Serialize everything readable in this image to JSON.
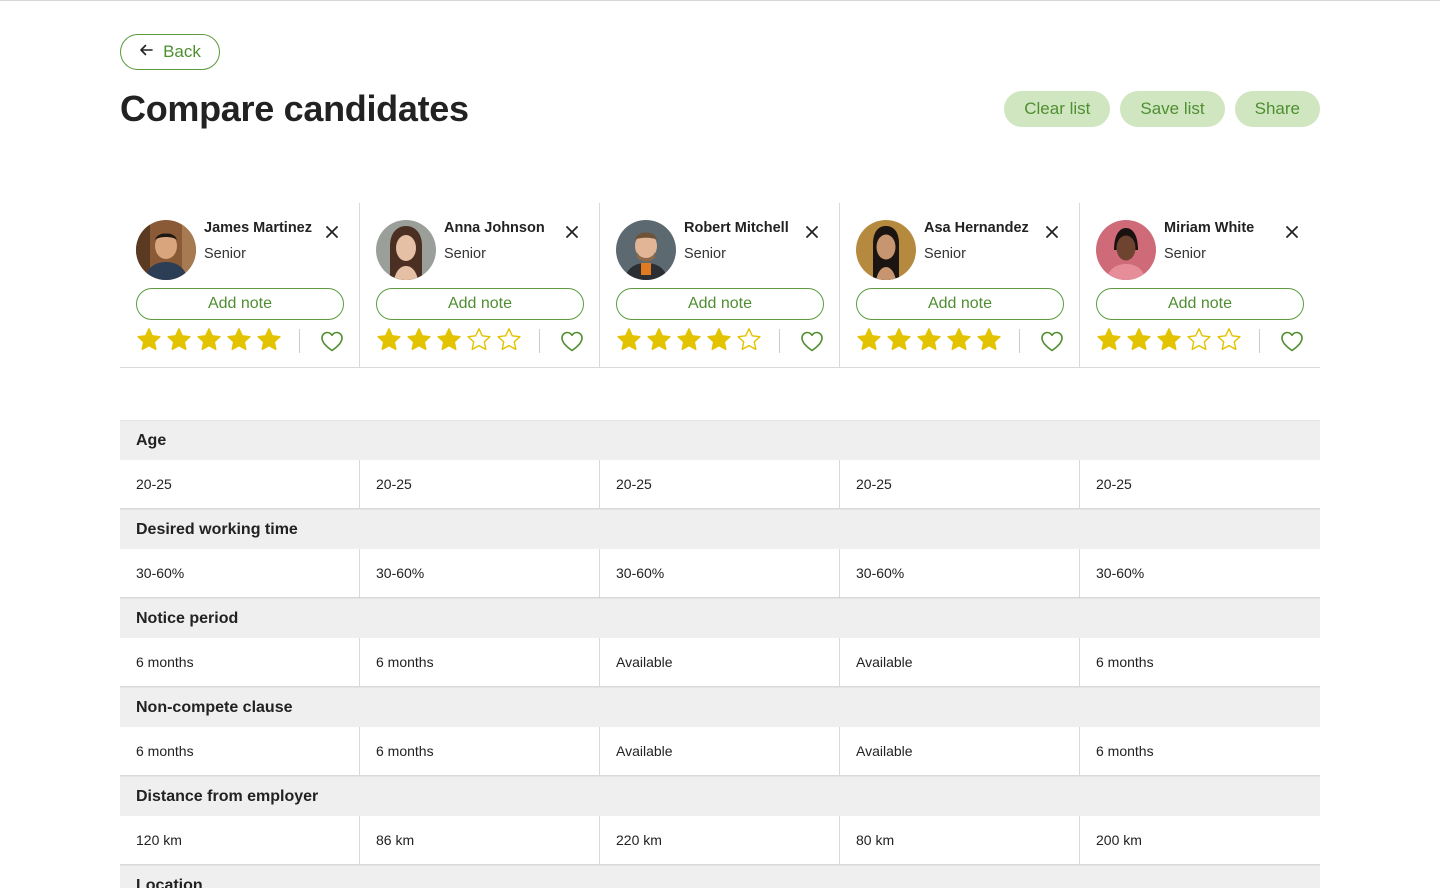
{
  "header": {
    "back_label": "Back",
    "title": "Compare candidates",
    "actions": [
      "Clear list",
      "Save list",
      "Share"
    ]
  },
  "candidates": [
    {
      "name": "James Martinez",
      "role": "Senior",
      "note_label": "Add note",
      "rating": 5
    },
    {
      "name": "Anna Johnson",
      "role": "Senior",
      "note_label": "Add note",
      "rating": 3
    },
    {
      "name": "Robert Mitchell",
      "role": "Senior",
      "note_label": "Add note",
      "rating": 4
    },
    {
      "name": "Asa Hernandez",
      "role": "Senior",
      "note_label": "Add note",
      "rating": 5
    },
    {
      "name": "Miriam White",
      "role": "Senior",
      "note_label": "Add note",
      "rating": 3
    }
  ],
  "rating_max": 5,
  "colors": {
    "accent": "#4f8f31",
    "pill_bg": "#cfe6c1",
    "star": "#e3c200",
    "section_bg": "#efefef"
  },
  "sections": [
    {
      "title": "Age",
      "values": [
        "20-25",
        "20-25",
        "20-25",
        "20-25",
        "20-25"
      ]
    },
    {
      "title": "Desired working time",
      "values": [
        "30-60%",
        "30-60%",
        "30-60%",
        "30-60%",
        "30-60%"
      ]
    },
    {
      "title": "Notice period",
      "values": [
        "6 months",
        "6 months",
        "Available",
        "Available",
        "6 months"
      ]
    },
    {
      "title": "Non-compete clause",
      "values": [
        "6 months",
        "6 months",
        "Available",
        "Available",
        "6 months"
      ]
    },
    {
      "title": "Distance from employer",
      "values": [
        "120 km",
        "86 km",
        "220 km",
        "80 km",
        "200 km"
      ]
    },
    {
      "title": "Location",
      "values": []
    }
  ]
}
